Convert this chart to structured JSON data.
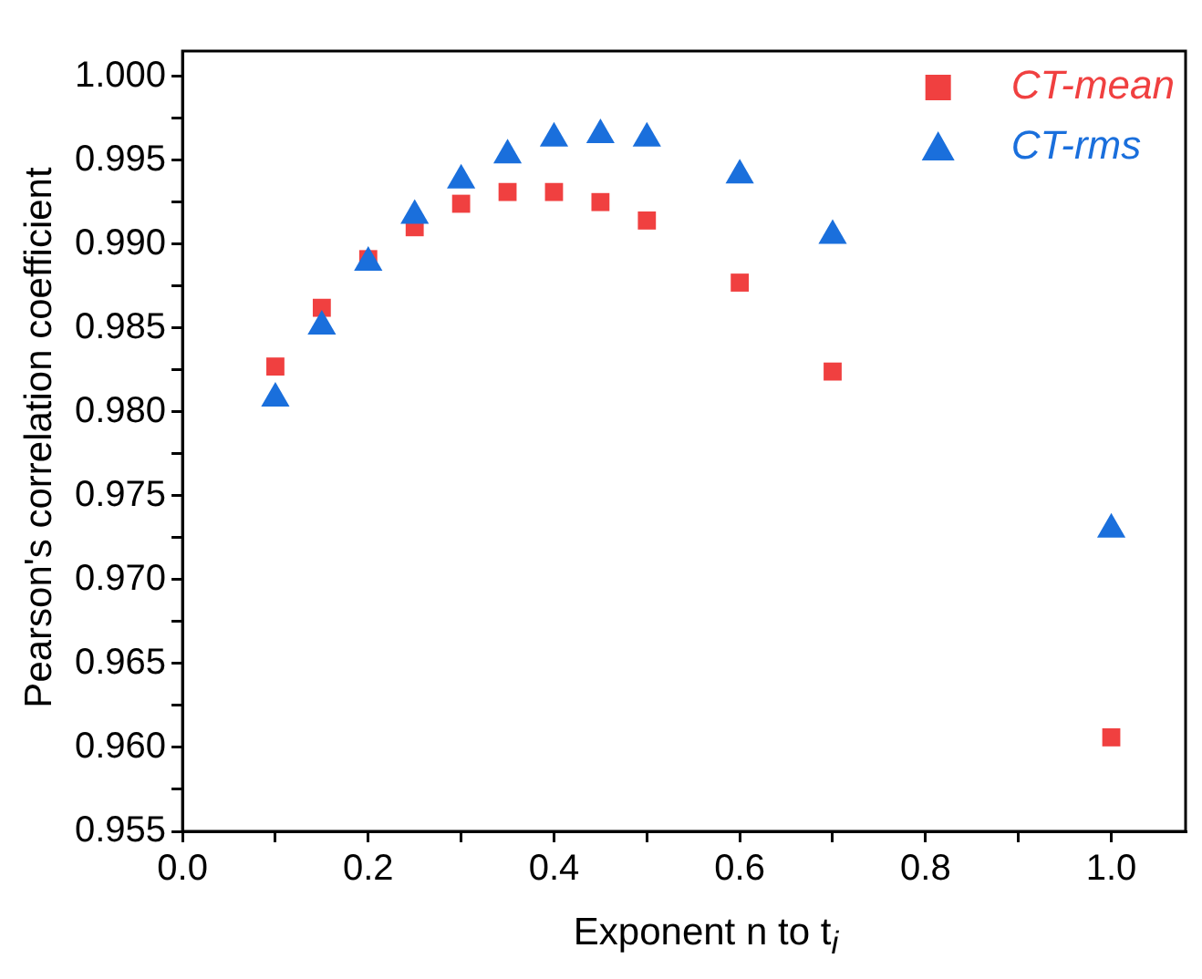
{
  "chart_data": {
    "type": "scatter",
    "xlabel": "Exponent n to t$_{i}$",
    "ylabel": "Pearson's correlation coefficient",
    "x": [
      0.1,
      0.15,
      0.2,
      0.25,
      0.3,
      0.35,
      0.4,
      0.45,
      0.5,
      0.6,
      0.7,
      1.0
    ],
    "series": [
      {
        "name": "CT-mean",
        "color": "#f04040",
        "marker": "square",
        "values": [
          0.9827,
          0.9862,
          0.9891,
          0.991,
          0.9924,
          0.9931,
          0.9931,
          0.9925,
          0.9914,
          0.9877,
          0.9824,
          0.9606
        ]
      },
      {
        "name": "CT-rms",
        "color": "#1a6fdc",
        "marker": "triangle",
        "values": [
          0.9808,
          0.9851,
          0.9889,
          0.9917,
          0.9938,
          0.9953,
          0.9963,
          0.9965,
          0.9963,
          0.9941,
          0.9905,
          0.973
        ]
      }
    ],
    "xlim": [
      0,
      1.08
    ],
    "xticks": [
      {
        "value": 0,
        "label": "0.0"
      },
      {
        "value": 0.1,
        "label": null
      },
      {
        "value": 0.2,
        "label": "0.2"
      },
      {
        "value": 0.3,
        "label": null
      },
      {
        "value": 0.4,
        "label": "0.4"
      },
      {
        "value": 0.5,
        "label": null
      },
      {
        "value": 0.6,
        "label": "0.6"
      },
      {
        "value": 0.7,
        "label": null
      },
      {
        "value": 0.8,
        "label": "0.8"
      },
      {
        "value": 0.9,
        "label": null
      },
      {
        "value": 1.0,
        "label": "1.0"
      }
    ],
    "ylim": [
      0.955,
      1.0015
    ],
    "yticks": [
      0.955,
      {
        "value": 0.9575,
        "label": null
      },
      {
        "value": 0.96,
        "label": "0.960"
      },
      {
        "value": 0.9625,
        "label": null
      },
      0.965,
      {
        "value": 0.9675,
        "label": null
      },
      {
        "value": 0.97,
        "label": "0.970"
      },
      {
        "value": 0.9725,
        "label": null
      },
      0.975,
      {
        "value": 0.9775,
        "label": null
      },
      {
        "value": 0.98,
        "label": "0.980"
      },
      {
        "value": 0.9825,
        "label": null
      },
      0.985,
      {
        "value": 0.9875,
        "label": null
      },
      {
        "value": 0.99,
        "label": "0.990"
      },
      {
        "value": 0.9925,
        "label": null
      },
      0.995,
      {
        "value": 0.9975,
        "label": null
      },
      {
        "value": 1.0,
        "label": "1.000"
      }
    ],
    "grid": false,
    "legend": "top right"
  }
}
